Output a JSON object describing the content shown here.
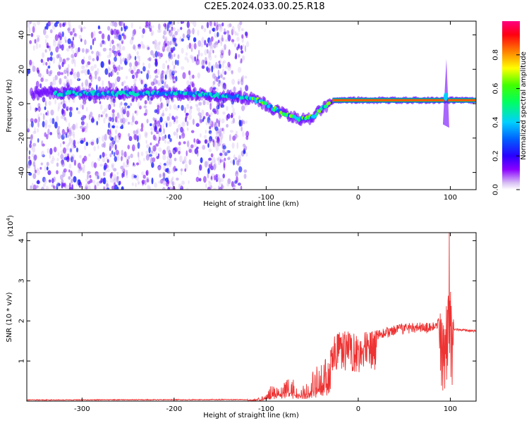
{
  "title": "C2E5.2024.033.00.25.R18",
  "chart_data": [
    {
      "type": "heatmap",
      "title": "C2E5.2024.033.00.25.R18",
      "xlabel": "Height of straight line (km)",
      "ylabel": "Frequency (Hz)",
      "xlim": [
        -360,
        128
      ],
      "ylim": [
        -50,
        48
      ],
      "xticks": [
        -300,
        -200,
        -100,
        0,
        100
      ],
      "yticks": [
        -40,
        -20,
        0,
        20,
        40
      ],
      "colorbar": {
        "label": "Normalized spectral amplitude",
        "range": [
          0.0,
          1.0
        ],
        "ticks": [
          "0.0",
          "0.2",
          "0.4",
          "0.6",
          "0.8"
        ],
        "colors": [
          "#ffffff",
          "#c9a8f0",
          "#7a00ff",
          "#0000ff",
          "#00ccff",
          "#00ff00",
          "#ffff00",
          "#ff8000",
          "#ff0000",
          "#ff0080"
        ]
      },
      "ridge": [
        {
          "x": -330,
          "y": 6
        },
        {
          "x": -300,
          "y": 6
        },
        {
          "x": -250,
          "y": 6
        },
        {
          "x": -200,
          "y": 6
        },
        {
          "x": -160,
          "y": 5
        },
        {
          "x": -130,
          "y": 4
        },
        {
          "x": -110,
          "y": 2
        },
        {
          "x": -95,
          "y": -2
        },
        {
          "x": -80,
          "y": -6
        },
        {
          "x": -65,
          "y": -9
        },
        {
          "x": -50,
          "y": -8
        },
        {
          "x": -40,
          "y": -3
        },
        {
          "x": -30,
          "y": 1
        },
        {
          "x": -20,
          "y": 2
        },
        {
          "x": 0,
          "y": 2
        },
        {
          "x": 50,
          "y": 2
        },
        {
          "x": 95,
          "y": 2
        },
        {
          "x": 128,
          "y": 2
        }
      ],
      "spike_x": 95
    },
    {
      "type": "line",
      "xlabel": "Height of straight line (km)",
      "ylabel": "SNR (10 * v/v)",
      "yscale_label": "(x10",
      "yscale_exp": "4",
      "yscale_close": ")",
      "xlim": [
        -360,
        128
      ],
      "ylim": [
        0,
        4.2
      ],
      "xticks": [
        -300,
        -200,
        -100,
        0,
        100
      ],
      "yticks": [
        1,
        2,
        3,
        4
      ],
      "series": [
        {
          "color": "#ee3333",
          "envelope": [
            {
              "x": -360,
              "y": 0.02
            },
            {
              "x": -120,
              "y": 0.03
            },
            {
              "x": -105,
              "y": 0.1
            },
            {
              "x": -95,
              "y": 0.4
            },
            {
              "x": -75,
              "y": 0.6
            },
            {
              "x": -60,
              "y": 0.4
            },
            {
              "x": -45,
              "y": 0.9
            },
            {
              "x": -35,
              "y": 1.3
            },
            {
              "x": -25,
              "y": 1.6
            },
            {
              "x": -15,
              "y": 1.7
            },
            {
              "x": 0,
              "y": 1.6
            },
            {
              "x": 20,
              "y": 1.7
            },
            {
              "x": 40,
              "y": 1.8
            },
            {
              "x": 60,
              "y": 1.9
            },
            {
              "x": 80,
              "y": 1.85
            },
            {
              "x": 88,
              "y": 2.0
            },
            {
              "x": 95,
              "y": 2.5
            },
            {
              "x": 100,
              "y": 2.8
            },
            {
              "x": 104,
              "y": 1.8
            },
            {
              "x": 128,
              "y": 1.75
            }
          ],
          "peak": {
            "x": 99,
            "y": 4.2
          }
        }
      ]
    }
  ]
}
